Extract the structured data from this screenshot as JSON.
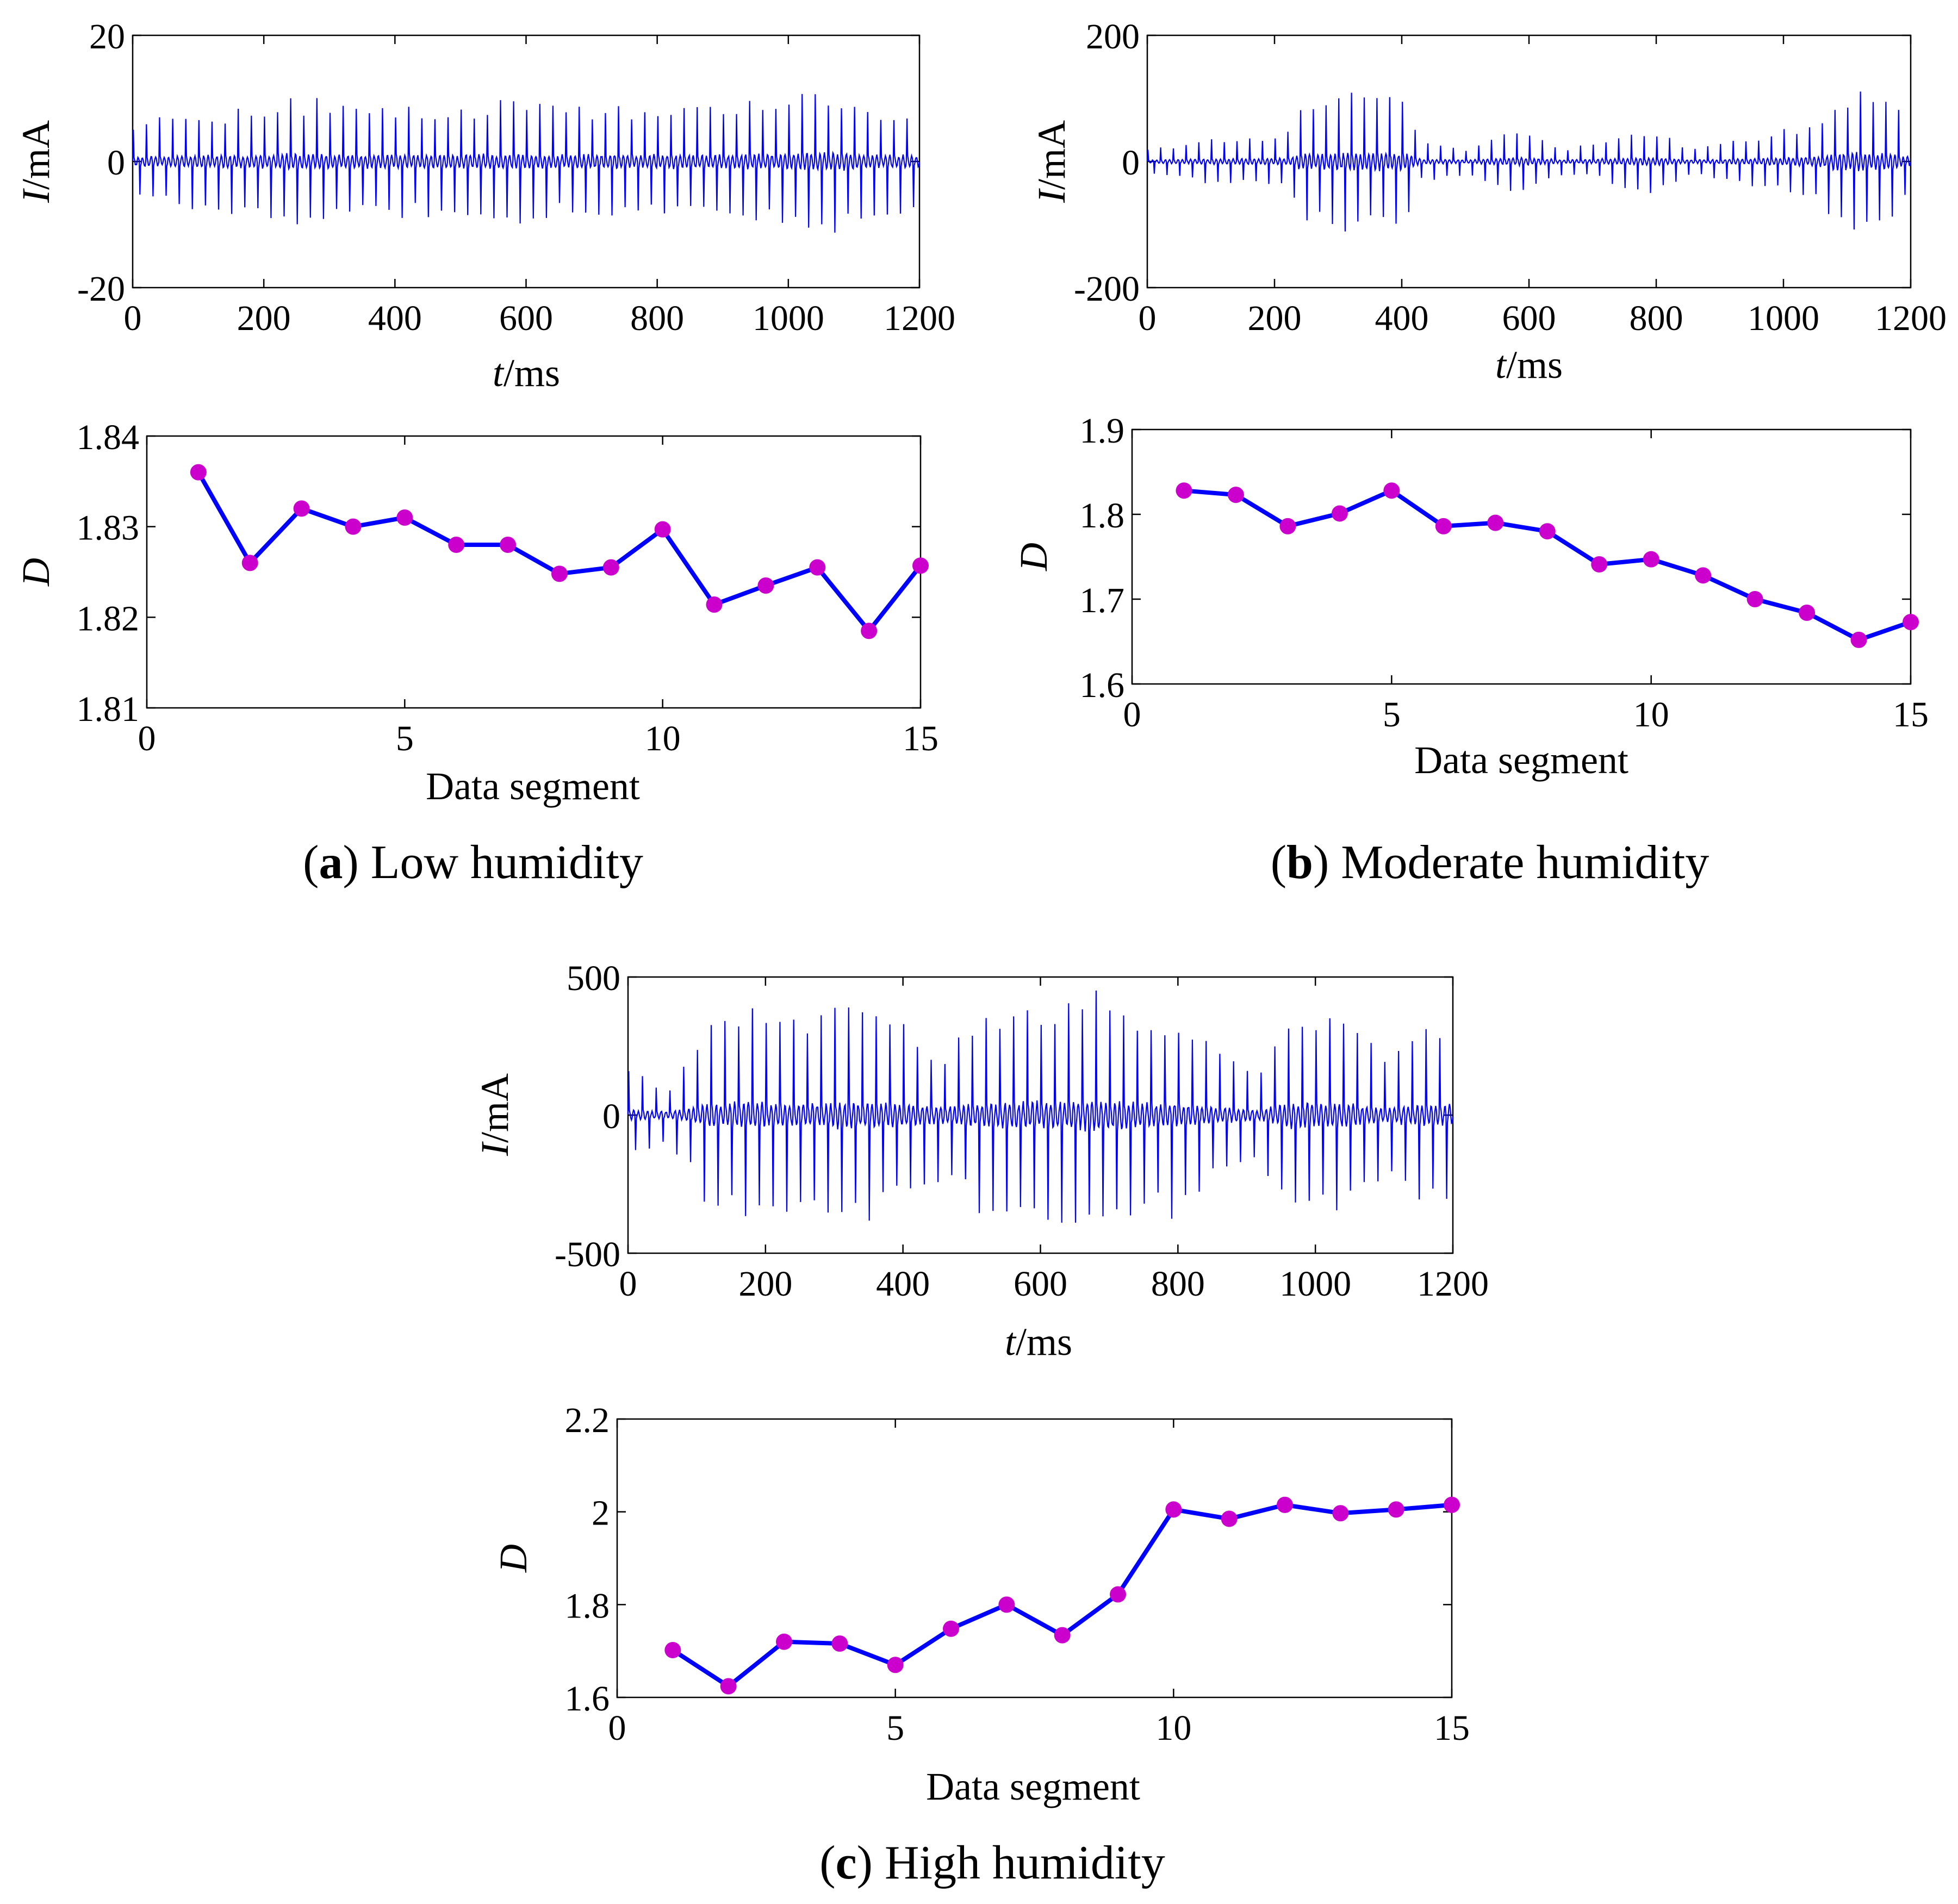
{
  "panels": [
    {
      "letter": "a",
      "caption": "Low humidity",
      "current_chart": {
        "type": "line",
        "ylabel_italic": "I",
        "ylabel_unit": "/mA",
        "xlabel_italic": "t",
        "xlabel_unit": "/ms",
        "xlim": [
          0,
          1200
        ],
        "ylim": [
          -20,
          20
        ],
        "xticks": [
          "0",
          "200",
          "400",
          "600",
          "800",
          "1000",
          "1200"
        ],
        "yticks": [
          "20",
          "0",
          "-20"
        ],
        "series": [
          {
            "color": "#0000ff",
            "period_ms": 20,
            "amplitude_envelope": [
              [
                0,
                6
              ],
              [
                100,
                7
              ],
              [
                200,
                8
              ],
              [
                240,
                9
              ],
              [
                280,
                9
              ],
              [
                320,
                8
              ],
              [
                400,
                8
              ],
              [
                500,
                8
              ],
              [
                580,
                9
              ],
              [
                650,
                8
              ],
              [
                800,
                8
              ],
              [
                900,
                8
              ],
              [
                1000,
                9
              ],
              [
                1020,
                11
              ],
              [
                1080,
                10
              ],
              [
                1120,
                8
              ],
              [
                1200,
                7
              ]
            ]
          }
        ]
      },
      "d_chart": {
        "type": "line",
        "ylabel": "D",
        "xlabel": "Data segment",
        "xlim": [
          0,
          15
        ],
        "ylim": [
          1.81,
          1.84
        ],
        "xticks": [
          "0",
          "5",
          "10",
          "15"
        ],
        "yticks": [
          "1.84",
          "1.83",
          "1.82",
          "1.81"
        ],
        "line_color": "#0000ff",
        "marker_color": "#cc00cc",
        "x": [
          1,
          2,
          3,
          4,
          5,
          6,
          7,
          8,
          9,
          10,
          11,
          12,
          13,
          14,
          15
        ],
        "values": [
          1.836,
          1.826,
          1.832,
          1.83,
          1.831,
          1.828,
          1.828,
          1.8248,
          1.8255,
          1.8297,
          1.8214,
          1.8235,
          1.8255,
          1.8185,
          1.8257
        ]
      }
    },
    {
      "letter": "b",
      "caption": "Moderate humidity",
      "current_chart": {
        "type": "line",
        "ylabel_italic": "I",
        "ylabel_unit": "/mA",
        "xlabel_italic": "t",
        "xlabel_unit": "/ms",
        "xlim": [
          0,
          1200
        ],
        "ylim": [
          -200,
          200
        ],
        "xticks": [
          "0",
          "200",
          "400",
          "600",
          "800",
          "1000",
          "1200"
        ],
        "yticks": [
          "200",
          "0",
          "-200"
        ],
        "series": [
          {
            "color": "#0000ff",
            "period_ms": 20,
            "amplitude_envelope": [
              [
                0,
                20
              ],
              [
                80,
                30
              ],
              [
                150,
                35
              ],
              [
                220,
                40
              ],
              [
                240,
                85
              ],
              [
                300,
                100
              ],
              [
                360,
                100
              ],
              [
                410,
                95
              ],
              [
                430,
                30
              ],
              [
                500,
                20
              ],
              [
                560,
                40
              ],
              [
                600,
                45
              ],
              [
                650,
                20
              ],
              [
                700,
                25
              ],
              [
                750,
                40
              ],
              [
                800,
                45
              ],
              [
                850,
                20
              ],
              [
                900,
                25
              ],
              [
                960,
                40
              ],
              [
                1000,
                45
              ],
              [
                1060,
                60
              ],
              [
                1080,
                100
              ],
              [
                1120,
                110
              ],
              [
                1160,
                100
              ],
              [
                1200,
                55
              ]
            ]
          }
        ]
      },
      "d_chart": {
        "type": "line",
        "ylabel": "D",
        "xlabel": "Data segment",
        "xlim": [
          0,
          15
        ],
        "ylim": [
          1.6,
          1.9
        ],
        "xticks": [
          "0",
          "5",
          "10",
          "15"
        ],
        "yticks": [
          "1.9",
          "1.8",
          "1.7",
          "1.6"
        ],
        "line_color": "#0000ff",
        "marker_color": "#cc00cc",
        "x": [
          1,
          2,
          3,
          4,
          5,
          6,
          7,
          8,
          9,
          10,
          11,
          12,
          13,
          14,
          15
        ],
        "values": [
          1.828,
          1.823,
          1.786,
          1.801,
          1.828,
          1.786,
          1.79,
          1.78,
          1.741,
          1.747,
          1.728,
          1.7,
          1.684,
          1.652,
          1.673
        ]
      }
    },
    {
      "letter": "c",
      "caption": "High humidity",
      "current_chart": {
        "type": "line",
        "ylabel_italic": "I",
        "ylabel_unit": "/mA",
        "xlabel_italic": "t",
        "xlabel_unit": "/ms",
        "xlim": [
          0,
          1200
        ],
        "ylim": [
          -500,
          500
        ],
        "xticks": [
          "0",
          "200",
          "400",
          "600",
          "800",
          "1000",
          "1200"
        ],
        "yticks": [
          "500",
          "0",
          "-500"
        ],
        "series": [
          {
            "color": "#0000ff",
            "period_ms": 20,
            "amplitude_envelope": [
              [
                0,
                150
              ],
              [
                60,
                100
              ],
              [
                90,
                200
              ],
              [
                120,
                330
              ],
              [
                200,
                350
              ],
              [
                260,
                300
              ],
              [
                320,
                380
              ],
              [
                400,
                300
              ],
              [
                460,
                220
              ],
              [
                520,
                330
              ],
              [
                600,
                360
              ],
              [
                680,
                410
              ],
              [
                760,
                330
              ],
              [
                800,
                360
              ],
              [
                860,
                200
              ],
              [
                920,
                150
              ],
              [
                960,
                330
              ],
              [
                1040,
                330
              ],
              [
                1100,
                200
              ],
              [
                1160,
                300
              ],
              [
                1200,
                320
              ]
            ]
          }
        ]
      },
      "d_chart": {
        "type": "line",
        "ylabel": "D",
        "xlabel": "Data segment",
        "xlim": [
          0,
          15
        ],
        "ylim": [
          1.6,
          2.2
        ],
        "xticks": [
          "0",
          "5",
          "10",
          "15"
        ],
        "yticks": [
          "2.2",
          "2",
          "1.8",
          "1.6"
        ],
        "line_color": "#0000ff",
        "marker_color": "#cc00cc",
        "x": [
          1,
          2,
          3,
          4,
          5,
          6,
          7,
          8,
          9,
          10,
          11,
          12,
          13,
          14,
          15
        ],
        "values": [
          1.702,
          1.624,
          1.72,
          1.716,
          1.67,
          1.748,
          1.8,
          1.734,
          1.822,
          2.005,
          1.985,
          2.015,
          1.997,
          2.005,
          2.015
        ]
      }
    }
  ]
}
